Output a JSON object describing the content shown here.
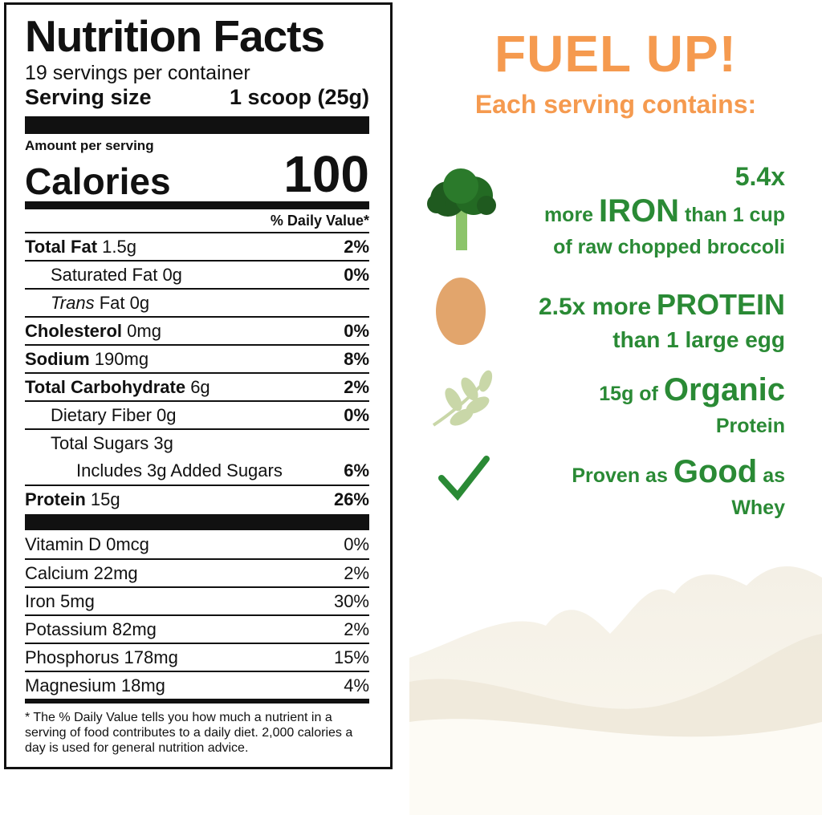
{
  "label": {
    "title": "Nutrition Facts",
    "servings": "19 servings per container",
    "serving_size_label": "Serving size",
    "serving_size": "1 scoop (25g)",
    "amount_per_serving": "Amount per serving",
    "calories_label": "Calories",
    "calories": "100",
    "dv_header": "% Daily Value*",
    "nutrients": [
      {
        "name": "Total Fat",
        "amount": "1.5g",
        "dv": "2%"
      },
      {
        "name": "Saturated Fat",
        "amount": "0g",
        "dv": "0%"
      },
      {
        "prefix": "Trans",
        "name": "Fat",
        "amount": "0g"
      },
      {
        "name": "Cholesterol",
        "amount": "0mg",
        "dv": "0%"
      },
      {
        "name": "Sodium",
        "amount": "190mg",
        "dv": "8%"
      },
      {
        "name": "Total Carbohydrate",
        "amount": "6g",
        "dv": "2%"
      },
      {
        "name": "Dietary Fiber",
        "amount": "0g",
        "dv": "0%"
      },
      {
        "name": "Total Sugars",
        "amount": "3g"
      },
      {
        "name": "Includes 3g Added Sugars",
        "dv": "6%"
      },
      {
        "name": "Protein",
        "amount": "15g",
        "dv": "26%"
      }
    ],
    "vitamins": [
      {
        "name": "Vitamin D",
        "amount": "0mcg",
        "dv": "0%"
      },
      {
        "name": "Calcium",
        "amount": "22mg",
        "dv": "2%"
      },
      {
        "name": "Iron",
        "amount": "5mg",
        "dv": "30%"
      },
      {
        "name": "Potassium",
        "amount": "82mg",
        "dv": "2%"
      },
      {
        "name": "Phosphorus",
        "amount": "178mg",
        "dv": "15%"
      },
      {
        "name": "Magnesium",
        "amount": "18mg",
        "dv": "4%"
      }
    ],
    "footnote": "* The % Daily Value tells you how much a nutrient in a serving of food contributes to a daily diet. 2,000 calories a day is used for general nutrition advice."
  },
  "promo": {
    "title": "FUEL UP!",
    "subtitle": "Each serving contains:",
    "items": [
      [
        [
          "5.4x"
        ],
        [
          "more",
          "IRON",
          "than 1 cup"
        ],
        [
          "of raw chopped broccoli"
        ]
      ],
      [
        [
          "2.5x more",
          "PROTEIN"
        ],
        [
          "than 1 large egg"
        ]
      ],
      [
        [
          "15g of",
          "Organic"
        ],
        [
          "Protein"
        ]
      ],
      [
        [
          "Proven as",
          "Good",
          "as"
        ],
        [
          "Whey"
        ]
      ]
    ]
  }
}
